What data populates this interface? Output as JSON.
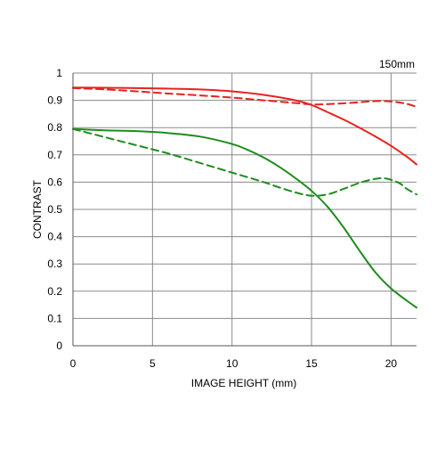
{
  "chart_data": {
    "type": "line",
    "title": "",
    "annotation": "150mm",
    "xlabel": "IMAGE HEIGHT (mm)",
    "ylabel": "CONTRAST",
    "xlim": [
      0,
      21.6
    ],
    "ylim": [
      0,
      1
    ],
    "xticks": [
      0,
      5,
      10,
      15,
      20
    ],
    "yticks": [
      0,
      0.1,
      0.2,
      0.3,
      0.4,
      0.5,
      0.6,
      0.7,
      0.8,
      0.9,
      1
    ],
    "ytick_labels": [
      "0",
      "0.1",
      "0.2",
      "0.3",
      "0.4",
      "0.5",
      "0.6",
      "0.7",
      "0.8",
      "0.9",
      "1"
    ],
    "grid": true,
    "legend": "none",
    "series": [
      {
        "color": "#e8221e",
        "dash": "solid",
        "x": [
          0,
          2,
          4,
          6,
          8,
          10,
          12,
          14,
          15,
          16,
          17,
          18,
          19,
          20,
          21,
          21.6
        ],
        "y": [
          0.947,
          0.946,
          0.945,
          0.943,
          0.94,
          0.933,
          0.92,
          0.9,
          0.883,
          0.857,
          0.83,
          0.8,
          0.768,
          0.733,
          0.693,
          0.665
        ]
      },
      {
        "color": "#e8221e",
        "dash": "dashed",
        "x": [
          0,
          2,
          4,
          6,
          8,
          10,
          12,
          14,
          15,
          16,
          17,
          18,
          19,
          20,
          21,
          21.6
        ],
        "y": [
          0.945,
          0.94,
          0.933,
          0.925,
          0.918,
          0.91,
          0.9,
          0.89,
          0.885,
          0.886,
          0.889,
          0.893,
          0.897,
          0.896,
          0.887,
          0.876
        ]
      },
      {
        "color": "#1e8c1e",
        "dash": "solid",
        "x": [
          0,
          2,
          4,
          6,
          8,
          10,
          11,
          12,
          13,
          14,
          15,
          16,
          17,
          18,
          19,
          20,
          21,
          21.6
        ],
        "y": [
          0.795,
          0.79,
          0.787,
          0.78,
          0.767,
          0.74,
          0.718,
          0.69,
          0.655,
          0.614,
          0.568,
          0.51,
          0.435,
          0.35,
          0.27,
          0.21,
          0.165,
          0.14
        ]
      },
      {
        "color": "#1e8c1e",
        "dash": "dashed",
        "x": [
          0,
          2,
          4,
          6,
          8,
          10,
          12,
          13,
          14,
          15,
          16,
          17,
          18,
          19,
          19.7,
          20.5,
          21,
          21.6
        ],
        "y": [
          0.795,
          0.765,
          0.735,
          0.705,
          0.67,
          0.635,
          0.6,
          0.58,
          0.562,
          0.55,
          0.555,
          0.575,
          0.597,
          0.612,
          0.613,
          0.597,
          0.575,
          0.555
        ]
      }
    ]
  }
}
